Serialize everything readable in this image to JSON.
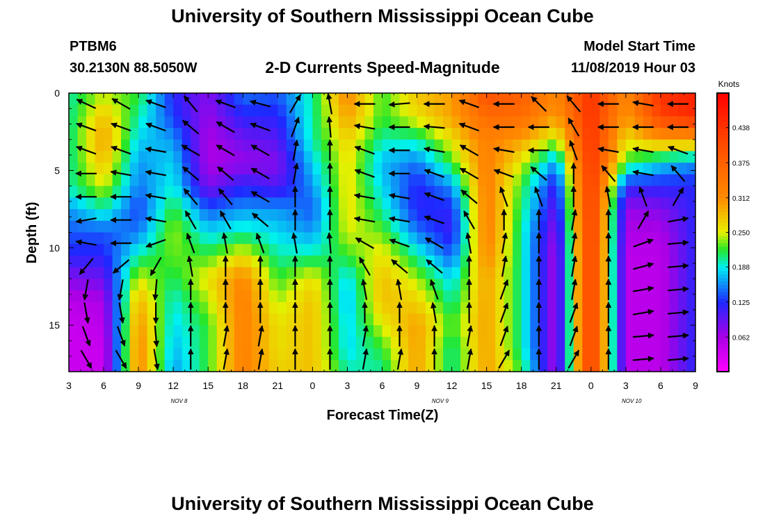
{
  "header": {
    "title": "University of Southern Mississippi Ocean Cube",
    "station_id": "PTBM6",
    "station_coords": "30.2130N 88.5050W",
    "plot_title": "2-D Currents Speed-Magnitude",
    "model_start_label": "Model Start Time",
    "model_start_time": "11/08/2019 Hour 03"
  },
  "footer": {
    "title": "University of Southern Mississippi Ocean Cube"
  },
  "chart_data": {
    "type": "heatmap",
    "xlabel": "Forecast Time(Z)",
    "ylabel": "Depth (ft)",
    "x_tick_labels": [
      "3",
      "6",
      "9",
      "12",
      "15",
      "18",
      "21",
      "0",
      "3",
      "6",
      "9",
      "12",
      "15",
      "18",
      "21",
      "0",
      "3",
      "6",
      "9"
    ],
    "date_labels": [
      {
        "label": "NOV 8",
        "hours": 9.5
      },
      {
        "label": "NOV 9",
        "hours": 32
      },
      {
        "label": "NOV 10",
        "hours": 48.5
      }
    ],
    "x_hours_range": [
      0,
      54
    ],
    "y_ticks": [
      0,
      5,
      10,
      15
    ],
    "ylim": [
      0,
      18
    ],
    "colorbar": {
      "label": "Knots",
      "ticks": [
        "0.438",
        "0.375",
        "0.312",
        "0.250",
        "0.188",
        "0.125",
        "0.062"
      ],
      "tick_values": [
        0.438,
        0.375,
        0.312,
        0.25,
        0.188,
        0.125,
        0.062
      ],
      "range": [
        0,
        0.5
      ]
    },
    "speed_columns": {
      "depths_ft": [
        0,
        1.5,
        3,
        4.5,
        6,
        7.5,
        9,
        10.5,
        12,
        13.5,
        15,
        16.5,
        18
      ],
      "columns": [
        {
          "hours": 0,
          "speeds": [
            0.2,
            0.2,
            0.2,
            0.2,
            0.2,
            0.16,
            0.14,
            0.12,
            0.08,
            0.05,
            0.04,
            0.04,
            0.04
          ]
        },
        {
          "hours": 3,
          "speeds": [
            0.24,
            0.28,
            0.3,
            0.28,
            0.25,
            0.2,
            0.14,
            0.12,
            0.09,
            0.06,
            0.05,
            0.04,
            0.04
          ]
        },
        {
          "hours": 6,
          "speeds": [
            0.22,
            0.2,
            0.18,
            0.16,
            0.15,
            0.13,
            0.15,
            0.2,
            0.25,
            0.29,
            0.31,
            0.32,
            0.32
          ]
        },
        {
          "hours": 9,
          "speeds": [
            0.12,
            0.13,
            0.16,
            0.18,
            0.19,
            0.22,
            0.24,
            0.23,
            0.21,
            0.19,
            0.18,
            0.17,
            0.16
          ]
        },
        {
          "hours": 12,
          "speeds": [
            0.08,
            0.07,
            0.06,
            0.06,
            0.08,
            0.14,
            0.18,
            0.22,
            0.26,
            0.24,
            0.22,
            0.22,
            0.22
          ]
        },
        {
          "hours": 15,
          "speeds": [
            0.15,
            0.12,
            0.09,
            0.07,
            0.12,
            0.16,
            0.2,
            0.26,
            0.32,
            0.33,
            0.33,
            0.33,
            0.33
          ]
        },
        {
          "hours": 18,
          "speeds": [
            0.14,
            0.12,
            0.1,
            0.08,
            0.1,
            0.16,
            0.18,
            0.2,
            0.22,
            0.24,
            0.26,
            0.26,
            0.27
          ]
        },
        {
          "hours": 21,
          "speeds": [
            0.2,
            0.2,
            0.2,
            0.18,
            0.16,
            0.14,
            0.16,
            0.2,
            0.26,
            0.28,
            0.28,
            0.28,
            0.28
          ]
        },
        {
          "hours": 24,
          "speeds": [
            0.32,
            0.3,
            0.27,
            0.26,
            0.26,
            0.26,
            0.25,
            0.22,
            0.18,
            0.17,
            0.18,
            0.18,
            0.2
          ]
        },
        {
          "hours": 27,
          "speeds": [
            0.22,
            0.22,
            0.2,
            0.17,
            0.18,
            0.2,
            0.23,
            0.26,
            0.28,
            0.28,
            0.25,
            0.22,
            0.2
          ]
        },
        {
          "hours": 30,
          "speeds": [
            0.28,
            0.26,
            0.2,
            0.15,
            0.12,
            0.12,
            0.15,
            0.2,
            0.24,
            0.27,
            0.3,
            0.3,
            0.3
          ]
        },
        {
          "hours": 33,
          "speeds": [
            0.3,
            0.3,
            0.26,
            0.22,
            0.16,
            0.12,
            0.11,
            0.14,
            0.18,
            0.2,
            0.22,
            0.2,
            0.2
          ]
        },
        {
          "hours": 36,
          "speeds": [
            0.4,
            0.36,
            0.33,
            0.33,
            0.33,
            0.33,
            0.33,
            0.32,
            0.3,
            0.3,
            0.3,
            0.3,
            0.3
          ]
        },
        {
          "hours": 39,
          "speeds": [
            0.38,
            0.36,
            0.3,
            0.25,
            0.22,
            0.21,
            0.2,
            0.2,
            0.2,
            0.2,
            0.2,
            0.2,
            0.22
          ]
        },
        {
          "hours": 42,
          "speeds": [
            0.32,
            0.3,
            0.24,
            0.16,
            0.11,
            0.09,
            0.07,
            0.06,
            0.06,
            0.06,
            0.06,
            0.06,
            0.06
          ]
        },
        {
          "hours": 45,
          "speeds": [
            0.44,
            0.44,
            0.44,
            0.44,
            0.44,
            0.44,
            0.44,
            0.44,
            0.44,
            0.44,
            0.44,
            0.44,
            0.44
          ]
        },
        {
          "hours": 48,
          "speeds": [
            0.32,
            0.3,
            0.26,
            0.22,
            0.12,
            0.07,
            0.06,
            0.05,
            0.05,
            0.05,
            0.05,
            0.05,
            0.05
          ]
        },
        {
          "hours": 51,
          "speeds": [
            0.44,
            0.42,
            0.3,
            0.18,
            0.12,
            0.08,
            0.06,
            0.05,
            0.05,
            0.05,
            0.05,
            0.05,
            0.05
          ]
        },
        {
          "hours": 54,
          "speeds": [
            0.46,
            0.45,
            0.3,
            0.16,
            0.12,
            0.12,
            0.12,
            0.12,
            0.12,
            0.12,
            0.12,
            0.12,
            0.12
          ]
        }
      ]
    },
    "direction_columns": [
      {
        "hours": 1.5,
        "dirs": [
          205,
          200,
          200,
          180,
          180,
          170,
          190,
          130,
          100,
          80,
          70,
          60
        ]
      },
      {
        "hours": 4.5,
        "dirs": [
          210,
          200,
          200,
          190,
          180,
          180,
          180,
          140,
          100,
          80,
          70,
          60
        ]
      },
      {
        "hours": 7.5,
        "dirs": [
          200,
          200,
          190,
          190,
          190,
          190,
          160,
          120,
          95,
          90,
          85,
          80
        ]
      },
      {
        "hours": 10.5,
        "dirs": [
          230,
          220,
          210,
          220,
          230,
          240,
          250,
          260,
          270,
          270,
          270,
          270
        ]
      },
      {
        "hours": 13.5,
        "dirs": [
          200,
          210,
          210,
          220,
          230,
          240,
          260,
          270,
          270,
          270,
          280,
          280
        ]
      },
      {
        "hours": 16.5,
        "dirs": [
          195,
          200,
          210,
          210,
          210,
          220,
          250,
          270,
          270,
          270,
          280,
          280
        ]
      },
      {
        "hours": 19.5,
        "dirs": [
          300,
          290,
          280,
          280,
          270,
          270,
          260,
          270,
          270,
          270,
          270,
          270
        ]
      },
      {
        "hours": 22.5,
        "dirs": [
          260,
          265,
          270,
          270,
          270,
          270,
          265,
          270,
          270,
          270,
          270,
          270
        ]
      },
      {
        "hours": 25.5,
        "dirs": [
          180,
          190,
          200,
          200,
          190,
          190,
          210,
          240,
          260,
          270,
          280,
          280
        ]
      },
      {
        "hours": 28.5,
        "dirs": [
          175,
          180,
          180,
          180,
          190,
          190,
          200,
          220,
          260,
          270,
          270,
          280
        ]
      },
      {
        "hours": 31.5,
        "dirs": [
          180,
          185,
          190,
          200,
          200,
          200,
          210,
          220,
          250,
          260,
          270,
          270
        ]
      },
      {
        "hours": 34.5,
        "dirs": [
          200,
          200,
          210,
          210,
          220,
          240,
          260,
          270,
          270,
          270,
          280,
          280
        ]
      },
      {
        "hours": 37.5,
        "dirs": [
          180,
          180,
          190,
          200,
          250,
          270,
          280,
          280,
          290,
          290,
          290,
          300
        ]
      },
      {
        "hours": 40.5,
        "dirs": [
          225,
          180,
          180,
          220,
          250,
          270,
          270,
          270,
          270,
          270,
          270,
          270
        ]
      },
      {
        "hours": 43.5,
        "dirs": [
          230,
          240,
          250,
          270,
          270,
          280,
          280,
          280,
          280,
          290,
          290,
          300
        ]
      },
      {
        "hours": 46.5,
        "dirs": [
          180,
          180,
          190,
          230,
          260,
          270,
          270,
          270,
          270,
          270,
          270,
          270
        ]
      },
      {
        "hours": 49.5,
        "dirs": [
          190,
          180,
          190,
          190,
          250,
          300,
          340,
          345,
          350,
          350,
          355,
          355
        ]
      },
      {
        "hours": 52.5,
        "dirs": [
          180,
          180,
          200,
          230,
          300,
          350,
          355,
          355,
          355,
          355,
          355,
          355
        ]
      }
    ],
    "direction_depths_ft": [
      0.7,
      2.2,
      3.7,
      5.2,
      6.7,
      8.2,
      9.7,
      11.2,
      12.7,
      14.2,
      15.7,
      17.2
    ]
  }
}
